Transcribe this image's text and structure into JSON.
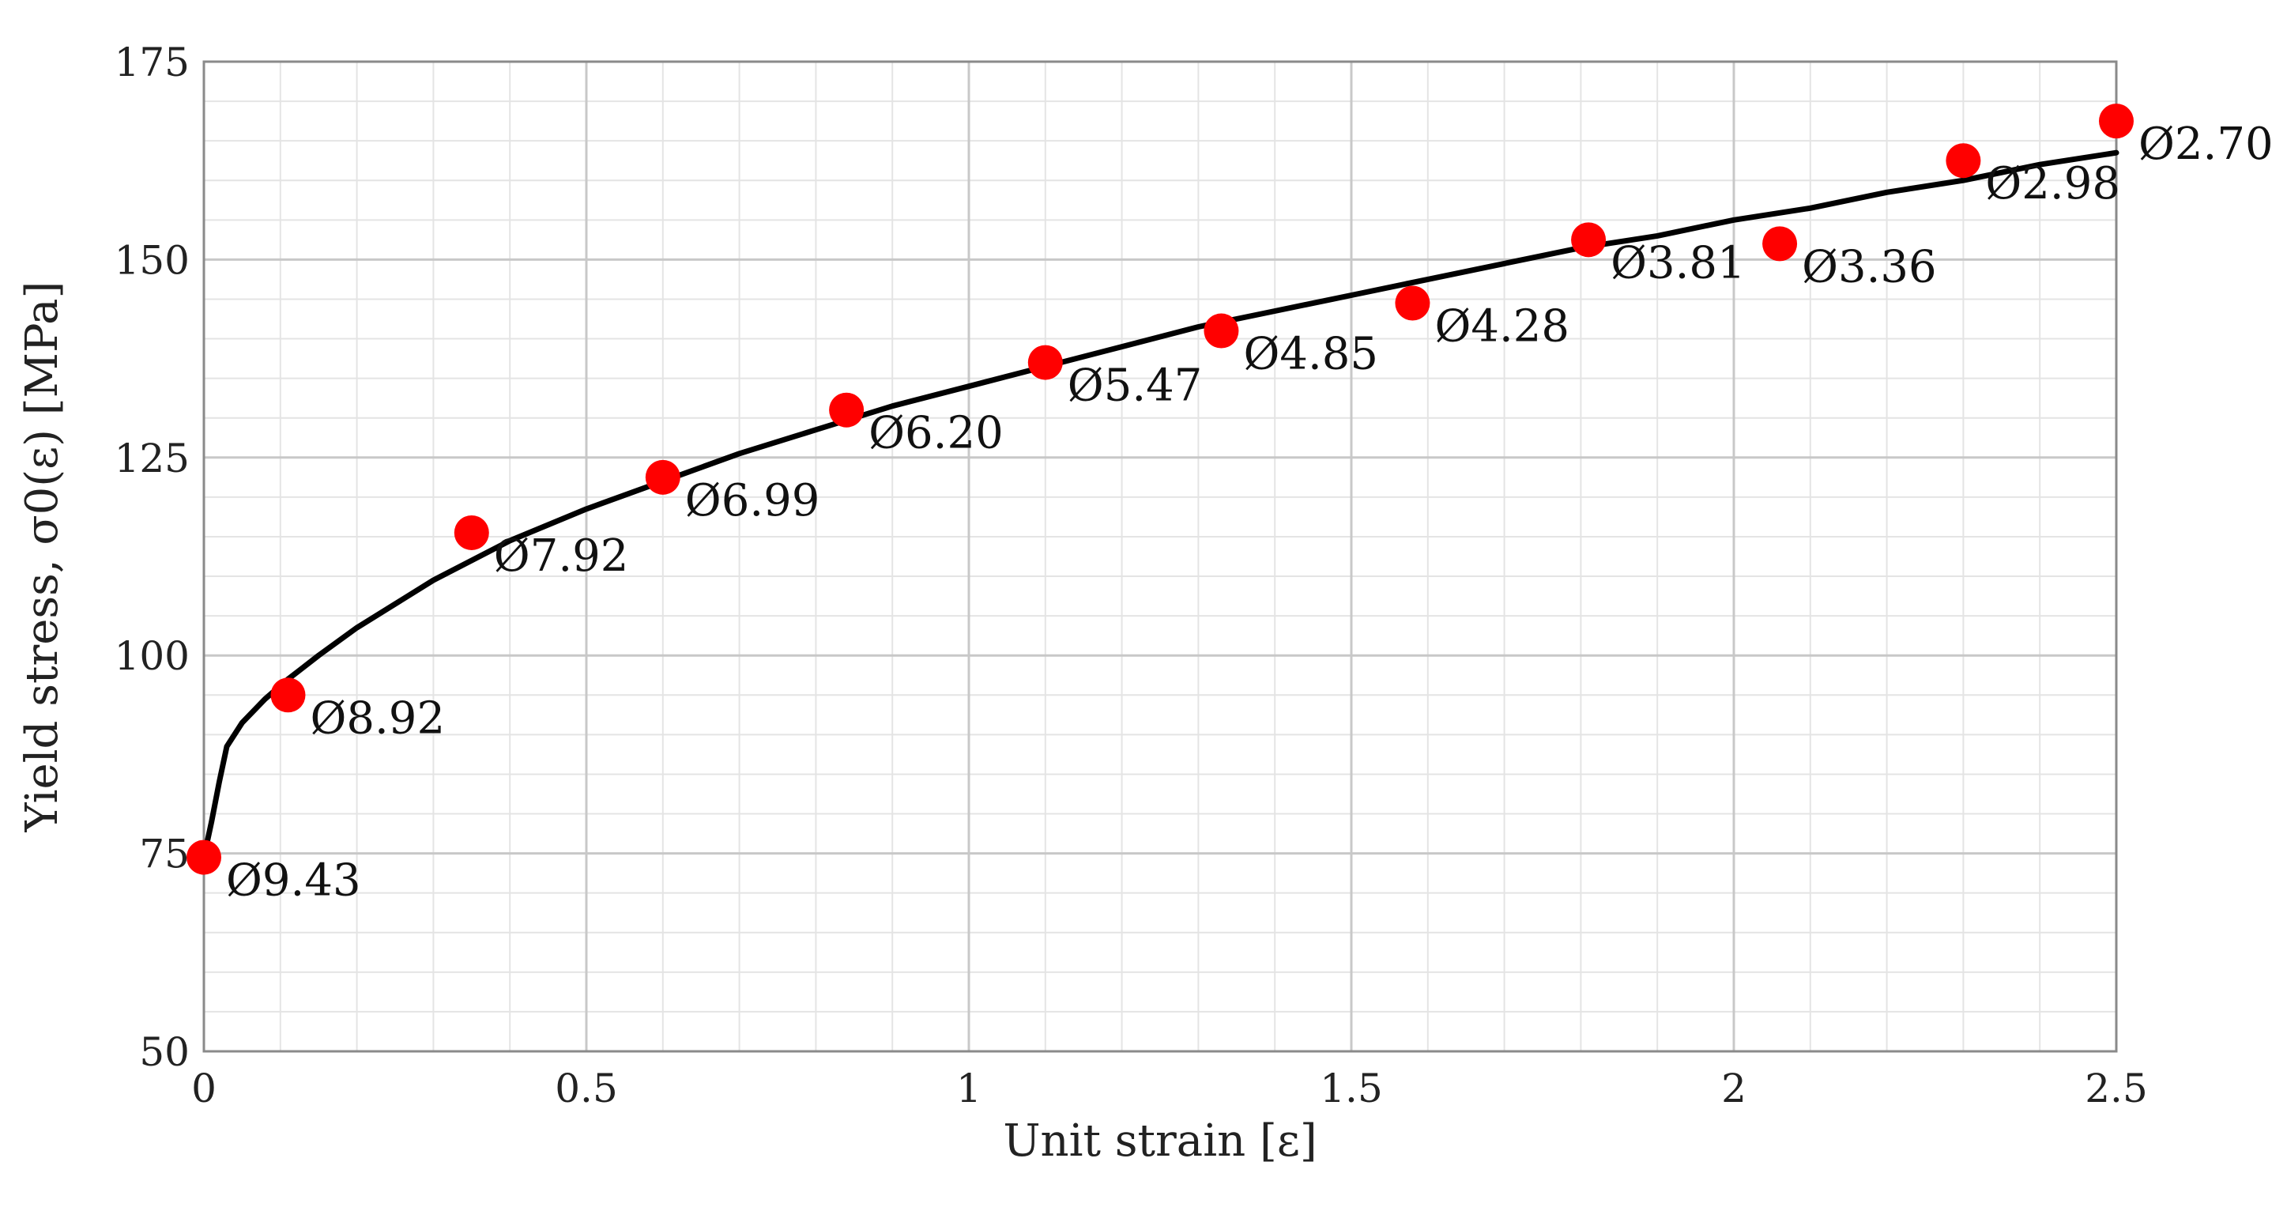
{
  "chart_data": {
    "type": "scatter",
    "title": "",
    "xlabel": "Unit strain [ε]",
    "ylabel": "Yield stress, σ0(ε) [MPa]",
    "xlim": [
      0,
      2.5
    ],
    "ylim": [
      50,
      175
    ],
    "x_ticks": [
      0,
      0.5,
      1,
      1.5,
      2,
      2.5
    ],
    "x_tick_labels": [
      "0",
      "0.5",
      "1",
      "1.5",
      "2",
      "2.5"
    ],
    "y_ticks": [
      50,
      75,
      100,
      125,
      150,
      175
    ],
    "y_tick_labels": [
      "50",
      "75",
      "100",
      "125",
      "150",
      "175"
    ],
    "grid": true,
    "legend": "none",
    "colors": {
      "points": "#ff0000",
      "curve": "#000000",
      "grid_major": "#c8c8c8",
      "grid_minor": "#e4e4e4"
    },
    "points": [
      {
        "x": 0.0,
        "y": 74.5,
        "label": "Ø9.43"
      },
      {
        "x": 0.11,
        "y": 95.0,
        "label": "Ø8.92"
      },
      {
        "x": 0.35,
        "y": 115.5,
        "label": "Ø7.92"
      },
      {
        "x": 0.6,
        "y": 122.5,
        "label": "Ø6.99"
      },
      {
        "x": 0.84,
        "y": 131.0,
        "label": "Ø6.20"
      },
      {
        "x": 1.1,
        "y": 137.0,
        "label": "Ø5.47"
      },
      {
        "x": 1.33,
        "y": 141.0,
        "label": "Ø4.85"
      },
      {
        "x": 1.58,
        "y": 144.5,
        "label": "Ø4.28"
      },
      {
        "x": 1.81,
        "y": 152.5,
        "label": "Ø3.81"
      },
      {
        "x": 2.06,
        "y": 152.0,
        "label": "Ø3.36"
      },
      {
        "x": 2.3,
        "y": 162.5,
        "label": "Ø2.98"
      },
      {
        "x": 2.5,
        "y": 167.5,
        "label": "Ø2.70"
      }
    ],
    "fit_curve": {
      "x": [
        0.0,
        0.01,
        0.02,
        0.03,
        0.05,
        0.08,
        0.11,
        0.15,
        0.2,
        0.3,
        0.4,
        0.5,
        0.6,
        0.7,
        0.8,
        0.9,
        1.0,
        1.1,
        1.2,
        1.3,
        1.4,
        1.5,
        1.6,
        1.7,
        1.8,
        1.9,
        2.0,
        2.1,
        2.2,
        2.3,
        2.4,
        2.5
      ],
      "y": [
        74.5,
        79.0,
        84.0,
        88.5,
        91.5,
        94.5,
        97.0,
        100.0,
        103.5,
        109.5,
        114.5,
        118.5,
        122.0,
        125.5,
        128.5,
        131.5,
        134.0,
        136.5,
        139.0,
        141.5,
        143.5,
        145.5,
        147.5,
        149.5,
        151.5,
        153.0,
        155.0,
        156.5,
        158.5,
        160.0,
        162.0,
        163.5
      ]
    }
  }
}
